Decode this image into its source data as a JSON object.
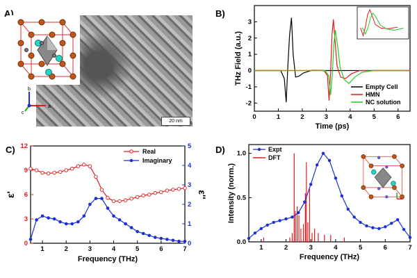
{
  "panels": {
    "a": {
      "label": "A)",
      "scale_bar": "20 nm",
      "axes": {
        "b": "b",
        "c": "c",
        "a": "a"
      }
    },
    "b": {
      "label": "B)"
    },
    "c": {
      "label": "C)"
    },
    "d": {
      "label": "D)"
    }
  },
  "colors": {
    "empty_cell": "#000000",
    "hmn": "#e31a1c",
    "nc": "#22cc22",
    "real": "#e31a1c",
    "imag": "#1a2fd6",
    "expt": "#1a2fd6",
    "dft": "#e31a1c",
    "atom_orange": "#c0561a",
    "atom_cyan": "#2ad3c4",
    "atom_gray": "#777777"
  },
  "chart_data": [
    {
      "id": "thz-field",
      "type": "line",
      "xlabel": "Time (ps)",
      "ylabel": "THz Field (a.u.)",
      "xlim": [
        0,
        6.5
      ],
      "ylim": [
        -2.5,
        4
      ],
      "xticks": [
        0,
        1,
        2,
        3,
        4,
        5,
        6
      ],
      "yticks": [
        -2,
        -1,
        0,
        1,
        2,
        3
      ],
      "legend_position": "bottom-right",
      "inset": "zoomed waveform top-right",
      "series": [
        {
          "name": "Empty Cell",
          "x": [
            0,
            1.1,
            1.25,
            1.33,
            1.4,
            1.47,
            1.55,
            1.62,
            1.72,
            1.85,
            2.05,
            2.4,
            3.0,
            4.0,
            6.5
          ],
          "y": [
            0,
            0,
            -0.5,
            -1.95,
            0.3,
            2.2,
            3.25,
            1.0,
            -0.4,
            -0.35,
            -0.15,
            0.02,
            0,
            0,
            0
          ]
        },
        {
          "name": "HMN",
          "x": [
            0,
            2.9,
            3.05,
            3.12,
            3.18,
            3.24,
            3.3,
            3.36,
            3.45,
            3.6,
            3.8,
            4.05,
            4.4,
            5.0,
            6.5
          ],
          "y": [
            0,
            0,
            -0.3,
            -1.85,
            -0.2,
            2.2,
            3.15,
            2.0,
            0.3,
            -0.4,
            -0.5,
            -0.2,
            0,
            0,
            0
          ]
        },
        {
          "name": "NC solution",
          "x": [
            0,
            2.95,
            3.1,
            3.18,
            3.25,
            3.32,
            3.38,
            3.46,
            3.58,
            3.75,
            3.95,
            4.2,
            4.5,
            5.0,
            6.5
          ],
          "y": [
            0,
            0,
            -0.3,
            -1.5,
            -0.3,
            1.6,
            2.5,
            1.7,
            0.2,
            -0.55,
            -0.8,
            -0.4,
            -0.1,
            0,
            0
          ]
        }
      ]
    },
    {
      "id": "permittivity",
      "type": "line",
      "xlabel": "Frequency (THz)",
      "ylabel_left": "ε'",
      "ylabel_right": "ε''",
      "xlim": [
        0.5,
        7
      ],
      "ylim_left": [
        0,
        12
      ],
      "ylim_right": [
        0,
        5
      ],
      "xticks": [
        1,
        2,
        3,
        4,
        5,
        6,
        7
      ],
      "yticks_left": [
        0,
        3,
        6,
        9,
        12
      ],
      "yticks_right": [
        0,
        1,
        2,
        3,
        4,
        5
      ],
      "legend_position": "top-right",
      "series": [
        {
          "name": "Real",
          "axis": "left",
          "x": [
            0.5,
            0.75,
            1.0,
            1.25,
            1.5,
            1.75,
            2.0,
            2.25,
            2.5,
            2.75,
            3.0,
            3.25,
            3.5,
            3.75,
            4.0,
            4.25,
            4.5,
            4.75,
            5.0,
            5.25,
            5.5,
            5.75,
            6.0,
            6.25,
            6.5,
            6.75,
            7.0
          ],
          "y": [
            9.2,
            9.0,
            8.7,
            8.6,
            8.7,
            8.8,
            9.0,
            9.2,
            9.5,
            9.7,
            9.5,
            8.2,
            6.6,
            5.6,
            5.2,
            5.2,
            5.3,
            5.5,
            5.7,
            5.9,
            6.0,
            6.2,
            6.3,
            6.5,
            6.6,
            6.7,
            6.8
          ]
        },
        {
          "name": "Imaginary",
          "axis": "right",
          "x": [
            0.5,
            0.75,
            1.0,
            1.25,
            1.5,
            1.75,
            2.0,
            2.25,
            2.5,
            2.75,
            3.0,
            3.25,
            3.5,
            3.75,
            4.0,
            4.25,
            4.5,
            4.75,
            5.0,
            5.25,
            5.5,
            5.75,
            6.0,
            6.25,
            6.5,
            6.75,
            7.0
          ],
          "y": [
            0.2,
            1.2,
            1.4,
            1.3,
            1.25,
            1.1,
            1.0,
            1.0,
            1.1,
            1.4,
            2.0,
            2.3,
            2.3,
            1.8,
            1.4,
            1.2,
            1.0,
            0.8,
            0.6,
            0.5,
            0.4,
            0.3,
            0.25,
            0.2,
            0.15,
            0.1,
            0.1
          ]
        }
      ]
    },
    {
      "id": "spectrum",
      "type": "line",
      "xlabel": "Frequency (THz)",
      "ylabel": "Intensity (norm.)",
      "xlim": [
        0.5,
        7
      ],
      "ylim": [
        0,
        1.1
      ],
      "xticks": [
        1,
        2,
        3,
        4,
        5,
        6,
        7
      ],
      "yticks": [
        0.0,
        0.5,
        1.0
      ],
      "legend_position": "top-left",
      "inset": "crystal structure top-right",
      "series": [
        {
          "name": "Expt",
          "x": [
            0.5,
            0.75,
            1.0,
            1.25,
            1.5,
            1.75,
            2.0,
            2.25,
            2.5,
            2.75,
            3.0,
            3.25,
            3.5,
            3.75,
            4.0,
            4.25,
            4.5,
            4.75,
            5.0,
            5.25,
            5.5,
            5.75,
            6.0,
            6.25,
            6.5,
            6.75,
            7.0
          ],
          "y": [
            0.04,
            0.1,
            0.15,
            0.19,
            0.22,
            0.24,
            0.26,
            0.28,
            0.33,
            0.45,
            0.65,
            0.87,
            1.0,
            0.92,
            0.72,
            0.52,
            0.37,
            0.28,
            0.22,
            0.18,
            0.16,
            0.15,
            0.17,
            0.21,
            0.25,
            0.14,
            0.05
          ]
        },
        {
          "name": "DFT",
          "type": "stick",
          "x": [
            1.1,
            2.15,
            2.25,
            2.33,
            2.38,
            2.45,
            2.52,
            2.6,
            2.7,
            2.78,
            2.82,
            2.88,
            2.95,
            3.05,
            3.15,
            3.3,
            3.55,
            3.8,
            4.35
          ],
          "y": [
            0.05,
            0.05,
            0.1,
            1.0,
            0.35,
            0.4,
            0.3,
            0.15,
            0.2,
            0.55,
            0.9,
            0.22,
            0.6,
            0.1,
            0.15,
            0.1,
            0.08,
            0.08,
            0.05
          ]
        }
      ]
    }
  ]
}
